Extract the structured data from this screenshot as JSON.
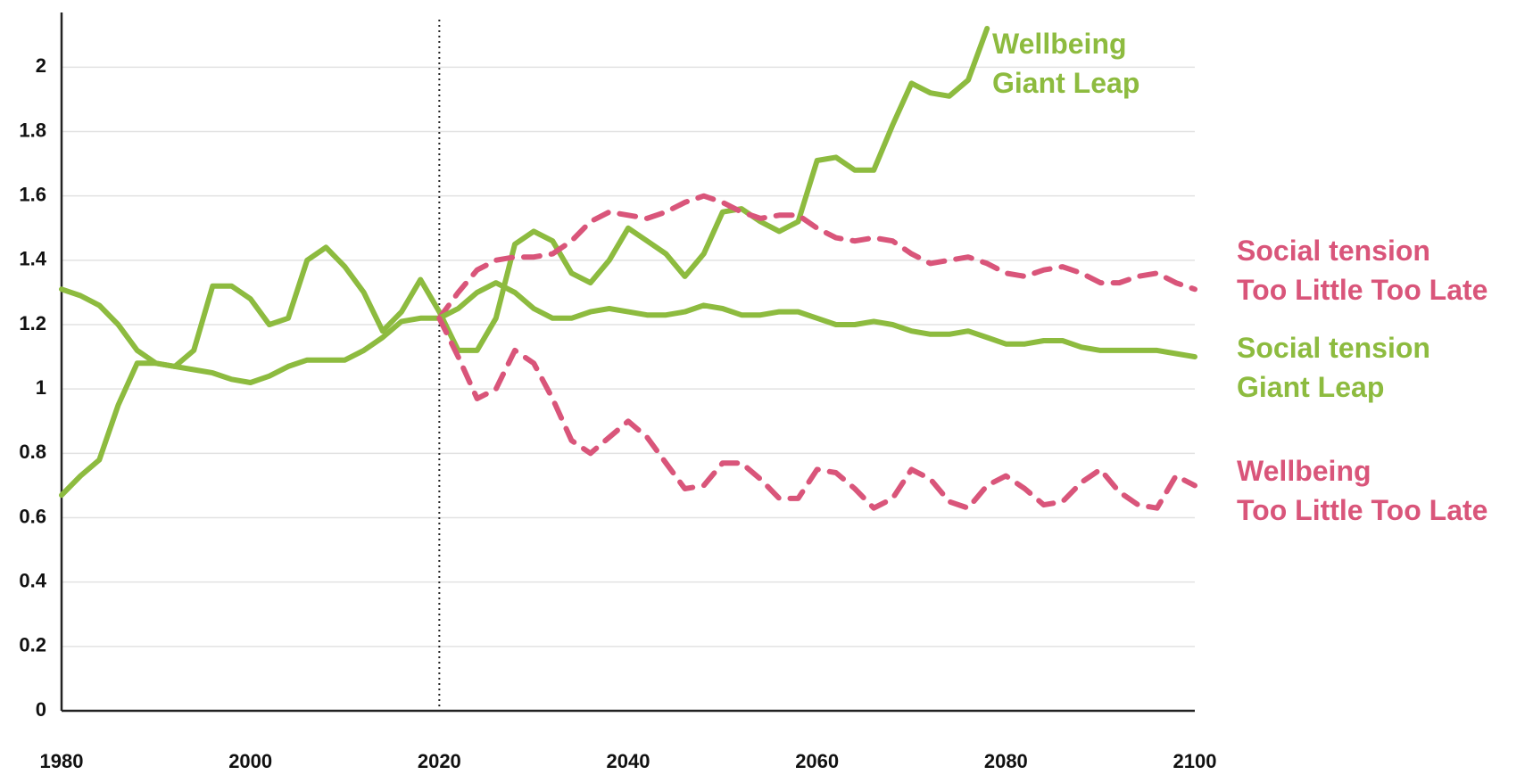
{
  "chart_data": {
    "type": "line",
    "x": [
      1980,
      1982,
      1984,
      1986,
      1988,
      1990,
      1992,
      1994,
      1996,
      1998,
      2000,
      2002,
      2004,
      2006,
      2008,
      2010,
      2012,
      2014,
      2016,
      2018,
      2020,
      2022,
      2024,
      2026,
      2028,
      2030,
      2032,
      2034,
      2036,
      2038,
      2040,
      2042,
      2044,
      2046,
      2048,
      2050,
      2052,
      2054,
      2056,
      2058,
      2060,
      2062,
      2064,
      2066,
      2068,
      2070,
      2072,
      2074,
      2076,
      2078,
      2080,
      2082,
      2084,
      2086,
      2088,
      2090,
      2092,
      2094,
      2096,
      2098,
      2100
    ],
    "series": [
      {
        "name": "Wellbeing\nGiant Leap",
        "color": "#8dbb3f",
        "style": "solid",
        "values": [
          0.67,
          0.73,
          0.78,
          0.95,
          1.08,
          1.08,
          1.07,
          1.12,
          1.32,
          1.32,
          1.28,
          1.2,
          1.22,
          1.4,
          1.44,
          1.38,
          1.3,
          1.18,
          1.24,
          1.34,
          1.24,
          1.12,
          1.12,
          1.22,
          1.45,
          1.49,
          1.46,
          1.36,
          1.33,
          1.4,
          1.5,
          1.46,
          1.42,
          1.35,
          1.42,
          1.55,
          1.56,
          1.52,
          1.49,
          1.52,
          1.71,
          1.72,
          1.68,
          1.68,
          1.82,
          1.95,
          1.92,
          1.91,
          1.96,
          2.12,
          null,
          null,
          null,
          null,
          null,
          null,
          null,
          null,
          null,
          null,
          null
        ]
      },
      {
        "name": "Social tension\nToo Little Too Late",
        "color": "#d9557a",
        "style": "dashed",
        "values": [
          null,
          null,
          null,
          null,
          null,
          null,
          null,
          null,
          null,
          null,
          null,
          null,
          null,
          null,
          null,
          null,
          null,
          null,
          null,
          null,
          1.22,
          1.3,
          1.37,
          1.4,
          1.41,
          1.41,
          1.42,
          1.46,
          1.52,
          1.55,
          1.54,
          1.53,
          1.55,
          1.58,
          1.6,
          1.58,
          1.55,
          1.53,
          1.54,
          1.54,
          1.5,
          1.47,
          1.46,
          1.47,
          1.46,
          1.42,
          1.39,
          1.4,
          1.41,
          1.39,
          1.36,
          1.35,
          1.37,
          1.38,
          1.36,
          1.33,
          1.33,
          1.35,
          1.36,
          1.33,
          1.31
        ]
      },
      {
        "name": "Social tension\nGiant Leap",
        "color": "#8dbb3f",
        "style": "solid",
        "values": [
          1.31,
          1.29,
          1.26,
          1.2,
          1.12,
          1.08,
          1.07,
          1.06,
          1.05,
          1.03,
          1.02,
          1.04,
          1.07,
          1.09,
          1.09,
          1.09,
          1.12,
          1.16,
          1.21,
          1.22,
          1.22,
          1.25,
          1.3,
          1.33,
          1.3,
          1.25,
          1.22,
          1.22,
          1.24,
          1.25,
          1.24,
          1.23,
          1.23,
          1.24,
          1.26,
          1.25,
          1.23,
          1.23,
          1.24,
          1.24,
          1.22,
          1.2,
          1.2,
          1.21,
          1.2,
          1.18,
          1.17,
          1.17,
          1.18,
          1.16,
          1.14,
          1.14,
          1.15,
          1.15,
          1.13,
          1.12,
          1.12,
          1.12,
          1.12,
          1.11,
          1.1
        ]
      },
      {
        "name": "Wellbeing\nToo Little Too Late",
        "color": "#d9557a",
        "style": "dashed",
        "values": [
          null,
          null,
          null,
          null,
          null,
          null,
          null,
          null,
          null,
          null,
          null,
          null,
          null,
          null,
          null,
          null,
          null,
          null,
          null,
          null,
          1.22,
          1.1,
          0.97,
          1.0,
          1.12,
          1.08,
          0.97,
          0.84,
          0.8,
          0.85,
          0.9,
          0.85,
          0.77,
          0.69,
          0.7,
          0.77,
          0.77,
          0.72,
          0.66,
          0.66,
          0.75,
          0.74,
          0.69,
          0.63,
          0.66,
          0.75,
          0.72,
          0.65,
          0.63,
          0.7,
          0.73,
          0.69,
          0.64,
          0.65,
          0.71,
          0.75,
          0.68,
          0.64,
          0.63,
          0.73,
          0.7
        ]
      }
    ],
    "xlim": [
      1980,
      2100
    ],
    "xticks": [
      1980,
      2000,
      2020,
      2040,
      2060,
      2080,
      2100
    ],
    "ylim": [
      0,
      2.17
    ],
    "yticks": [
      0,
      0.2,
      0.4,
      0.6,
      0.8,
      1,
      1.2,
      1.4,
      1.6,
      1.8,
      2
    ],
    "grid": true,
    "vline": 2020
  }
}
